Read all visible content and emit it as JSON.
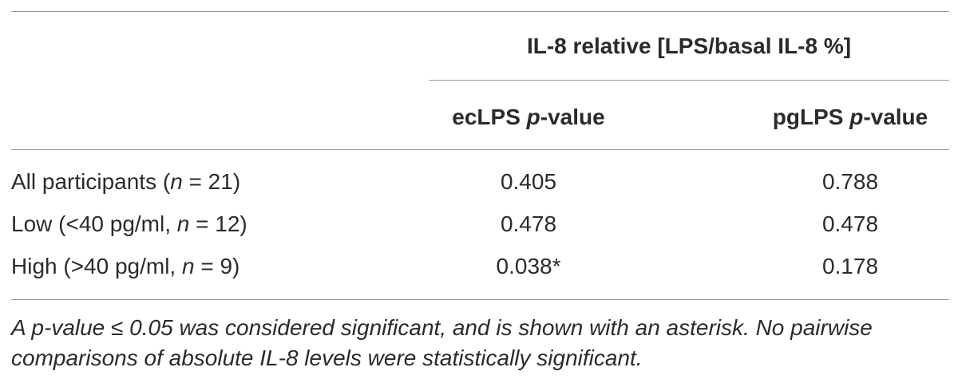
{
  "table": {
    "group_header": "IL-8 relative [LPS/basal IL-8 %]",
    "columns": [
      [
        "ecLPS ",
        "p",
        "-value"
      ],
      [
        "pgLPS ",
        "p",
        "-value"
      ]
    ],
    "rows": [
      {
        "label": [
          "All participants (",
          "n",
          " = 21)"
        ],
        "cells": [
          "0.405",
          "0.788"
        ]
      },
      {
        "label": [
          "Low (<40 pg/ml, ",
          "n",
          " = 12)"
        ],
        "cells": [
          "0.478",
          "0.478"
        ]
      },
      {
        "label": [
          "High (>40 pg/ml, ",
          "n",
          " = 9)"
        ],
        "cells": [
          "0.038*",
          "0.178"
        ]
      }
    ]
  },
  "footnote": "A p-value ≤ 0.05 was considered significant, and is shown with an asterisk. No pairwise comparisons of absolute IL-8 levels were statistically significant."
}
